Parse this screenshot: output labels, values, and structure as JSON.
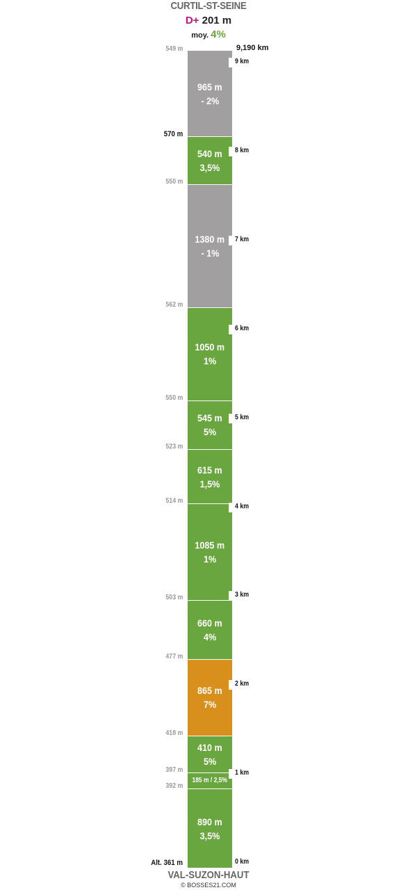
{
  "header": {
    "start_name": "CURTIL-ST-SEINE",
    "dplus_label": "D+",
    "dplus_value": "201 m",
    "avg_label": "moy.",
    "avg_value": "4%",
    "total_distance": "9,190 km"
  },
  "footer": {
    "end_name": "VAL-SUZON-HAUT",
    "copyright": "© BOSSES21.COM"
  },
  "colors": {
    "green": "#6aa63f",
    "gray": "#a19f9f",
    "orange": "#d98f1c",
    "dplus": "#c0157f"
  },
  "segments": [
    {
      "length": "965 m",
      "grade": "- 2%",
      "color": "gray",
      "length_m": 965
    },
    {
      "length": "540 m",
      "grade": "3,5%",
      "color": "green",
      "length_m": 540
    },
    {
      "length": "1380 m",
      "grade": "- 1%",
      "color": "gray",
      "length_m": 1380
    },
    {
      "length": "1050 m",
      "grade": "1%",
      "color": "green",
      "length_m": 1050
    },
    {
      "length": "545 m",
      "grade": "5%",
      "color": "green",
      "length_m": 545
    },
    {
      "length": "615 m",
      "grade": "1,5%",
      "color": "green",
      "length_m": 615
    },
    {
      "length": "1085 m",
      "grade": "1%",
      "color": "green",
      "length_m": 1085
    },
    {
      "length": "660 m",
      "grade": "4%",
      "color": "green",
      "length_m": 660
    },
    {
      "length": "865 m",
      "grade": "7%",
      "color": "orange",
      "length_m": 865
    },
    {
      "length": "410 m",
      "grade": "5%",
      "color": "green",
      "length_m": 410
    },
    {
      "length": "185 m / 2,5%",
      "grade": "",
      "color": "green",
      "length_m": 185
    },
    {
      "length": "890 m",
      "grade": "3,5%",
      "color": "green",
      "length_m": 890
    }
  ],
  "altitudes": [
    "549 m",
    "570 m",
    "550 m",
    "562 m",
    "550 m",
    "523 m",
    "514 m",
    "503 m",
    "477 m",
    "418 m",
    "397 m",
    "392 m",
    "Alt. 361 m"
  ],
  "altitude_major": [
    false,
    true,
    false,
    false,
    false,
    false,
    false,
    false,
    false,
    false,
    false,
    false,
    true
  ],
  "km_markers": [
    "9 km",
    "8 km",
    "7 km",
    "6 km",
    "5 km",
    "4 km",
    "3 km",
    "2 km",
    "1 km",
    "0 km"
  ]
}
